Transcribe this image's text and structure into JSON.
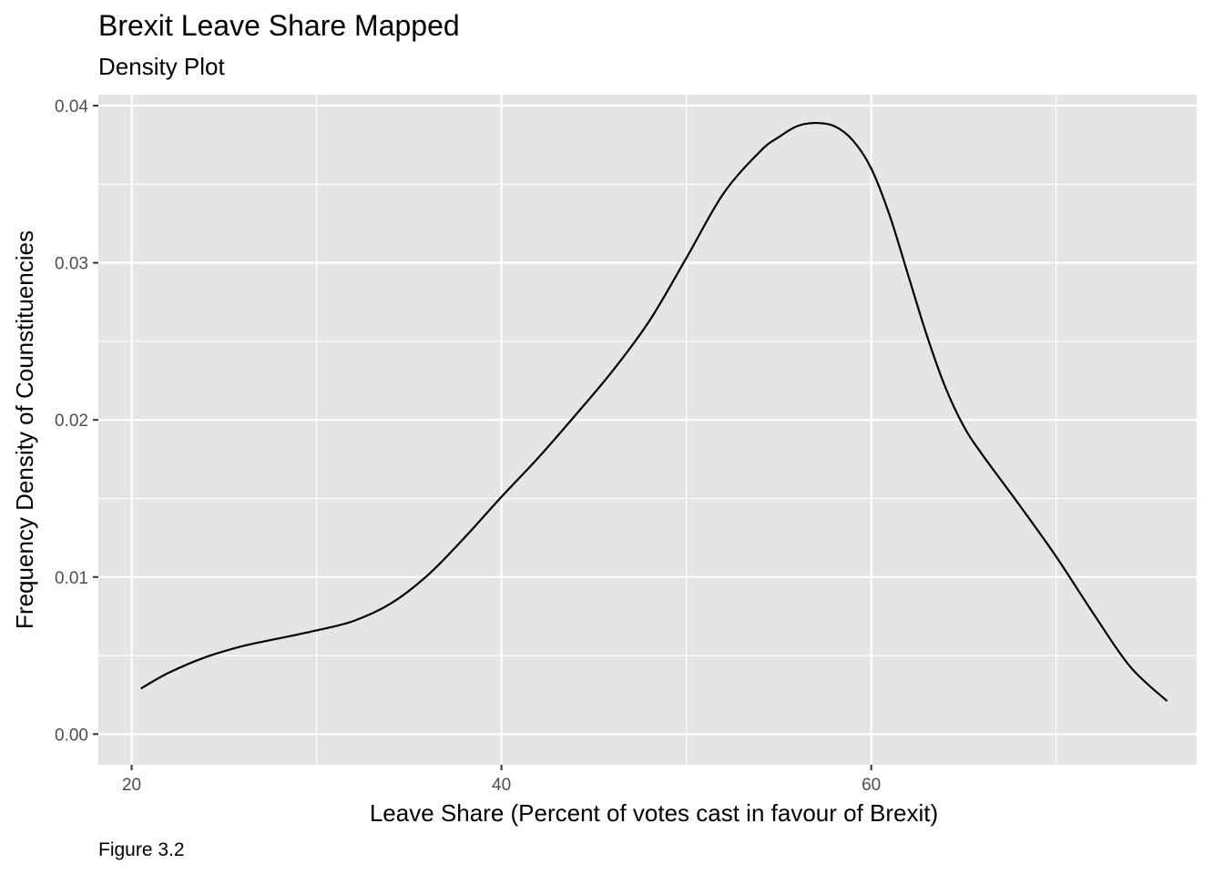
{
  "chart_data": {
    "type": "line",
    "title": "Brexit Leave Share Mapped",
    "subtitle": "Density Plot",
    "caption": "Figure 3.2",
    "xlabel": "Leave Share (Percent of votes cast in favour of Brexit)",
    "ylabel": "Frequency Density of Counstituencies",
    "xlim": [
      18.2,
      77.6
    ],
    "ylim": [
      -0.00195,
      0.0407
    ],
    "x_ticks": [
      20,
      40,
      60
    ],
    "x_tick_labels": [
      "20",
      "40",
      "60"
    ],
    "x_minor_ticks": [
      30,
      50,
      70
    ],
    "y_ticks": [
      0.0,
      0.01,
      0.02,
      0.03,
      0.04
    ],
    "y_tick_labels": [
      "0.00",
      "0.01",
      "0.02",
      "0.03",
      "0.04"
    ],
    "y_minor_ticks": [
      0.005,
      0.015,
      0.025,
      0.035
    ],
    "grid": true,
    "legend": "none",
    "colors": {
      "panel_background": "#e5e5e5",
      "grid": "#ffffff",
      "line": "#000000",
      "tick_text": "#4d4d4d",
      "tick_mark": "#333333"
    },
    "series": [
      {
        "x": [
          20.5,
          22.0,
          24.0,
          26.0,
          28.0,
          30.0,
          32.0,
          34.0,
          36.0,
          38.0,
          40.0,
          42.0,
          44.0,
          46.0,
          48.0,
          50.0,
          52.0,
          54.0,
          55.0,
          56.0,
          57.0,
          58.0,
          59.0,
          60.0,
          61.0,
          62.0,
          63.0,
          64.0,
          65.0,
          66.0,
          68.0,
          70.0,
          72.0,
          74.0,
          76.0
        ],
        "y": [
          0.0029,
          0.0039,
          0.0049,
          0.0056,
          0.0061,
          0.0066,
          0.0072,
          0.0083,
          0.0101,
          0.0125,
          0.0151,
          0.0176,
          0.0203,
          0.0231,
          0.0263,
          0.0303,
          0.0344,
          0.0371,
          0.038,
          0.0387,
          0.0389,
          0.0387,
          0.0378,
          0.036,
          0.033,
          0.0292,
          0.0254,
          0.0221,
          0.0196,
          0.0178,
          0.0146,
          0.0113,
          0.0077,
          0.0043,
          0.0021
        ]
      }
    ]
  }
}
